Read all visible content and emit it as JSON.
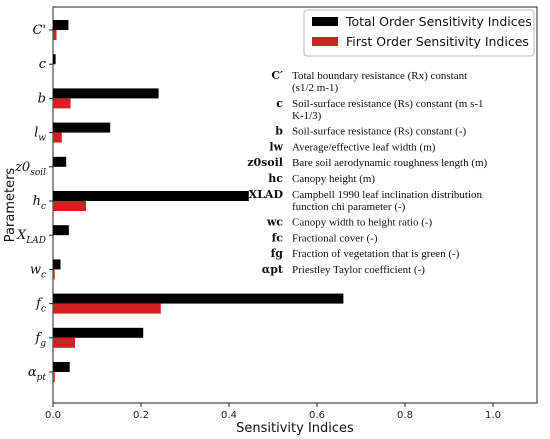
{
  "chart_data": {
    "type": "bar",
    "orientation": "horizontal",
    "xlabel": "Sensitivity Indices",
    "ylabel": "Parameters",
    "xlim": [
      0,
      1.1
    ],
    "xticks": [
      "0.0",
      "0.2",
      "0.4",
      "0.6",
      "0.8",
      "1.0"
    ],
    "categories": [
      "C'",
      "c",
      "b",
      "lw",
      "z0soil",
      "hc",
      "XLAD",
      "wc",
      "fc",
      "fg",
      "αpt"
    ],
    "category_labels": [
      {
        "main": "C'",
        "sub": ""
      },
      {
        "main": "c",
        "sub": ""
      },
      {
        "main": "b",
        "sub": ""
      },
      {
        "main": "l",
        "sub": "w"
      },
      {
        "main": "z0",
        "sub": "soil"
      },
      {
        "main": "h",
        "sub": "c"
      },
      {
        "main": "X",
        "sub": "LAD"
      },
      {
        "main": "w",
        "sub": "c"
      },
      {
        "main": "f",
        "sub": "c"
      },
      {
        "main": "f",
        "sub": "g"
      },
      {
        "main": "α",
        "sub": "pt"
      }
    ],
    "series": [
      {
        "name": "Total Order Sensitivity Indices",
        "color": "#000000",
        "values": [
          0.035,
          0.006,
          0.24,
          0.13,
          0.03,
          0.445,
          0.036,
          0.017,
          0.66,
          0.205,
          0.038
        ]
      },
      {
        "name": "First Order Sensitivity Indices",
        "color": "#d42020",
        "values": [
          0.008,
          0.0,
          0.04,
          0.02,
          0.0,
          0.075,
          0.0,
          0.004,
          0.245,
          0.05,
          0.004
        ]
      }
    ],
    "legend_position": "top-right",
    "grid": false,
    "annotations": [
      {
        "symbol": "C′",
        "text": "Total boundary resistance (Rx) constant (s1/2 m-1)"
      },
      {
        "symbol": "c",
        "text": "Soil-surface resistance (Rs) constant (m s-1 K-1/3)"
      },
      {
        "symbol": "b",
        "text": "Soil-surface resistance (Rs) constant (-)"
      },
      {
        "symbol": "lw",
        "text": "Average/effective leaf width (m)"
      },
      {
        "symbol": "z0soil",
        "text": "Bare soil aerodynamic roughness length (m)"
      },
      {
        "symbol": "hc",
        "text": "Canopy height (m)"
      },
      {
        "symbol": "XLAD",
        "text": "Campbell 1990 leaf inclination distribution function chi parameter (-)"
      },
      {
        "symbol": "wc",
        "text": "Canopy width to height ratio (-)"
      },
      {
        "symbol": "fc",
        "text": "Fractional cover (-)"
      },
      {
        "symbol": "fg",
        "text": "Fraction of vegetation that is green (-)"
      },
      {
        "symbol": "αpt",
        "text": "Priestley Taylor coefficient (-)"
      }
    ]
  }
}
